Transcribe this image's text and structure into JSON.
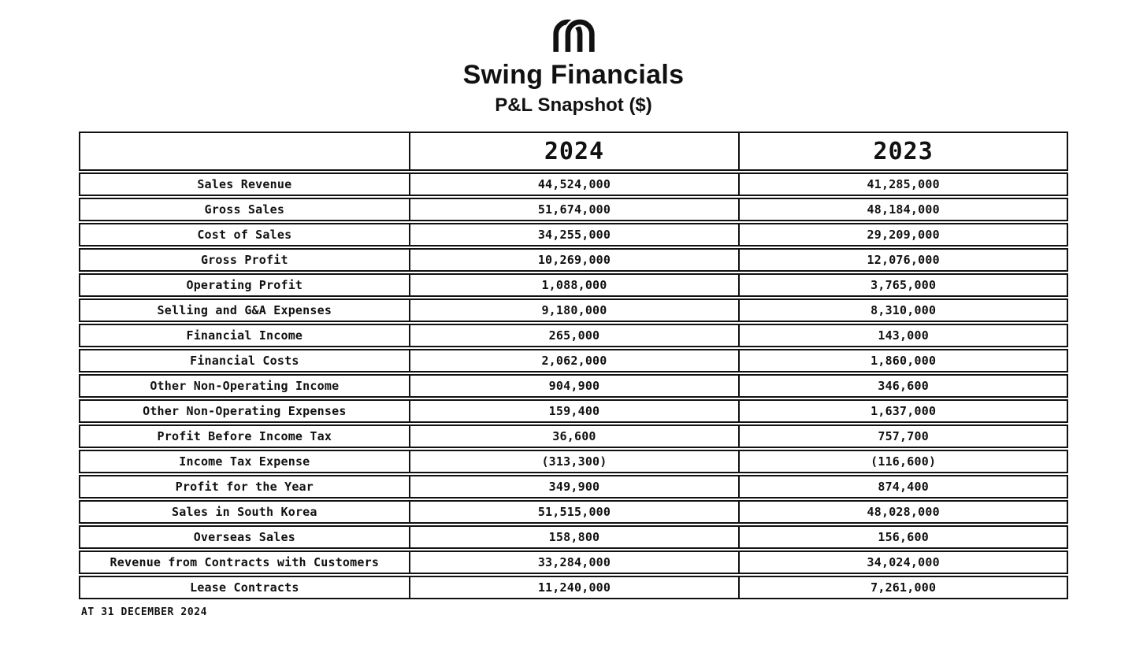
{
  "header": {
    "logo_icon": "interlocked-arches-monogram",
    "title": "Swing Financials",
    "subtitle": "P&L Snapshot ($)"
  },
  "table": {
    "columns": [
      "",
      "2024",
      "2023"
    ],
    "rows": [
      {
        "label": "Sales Revenue",
        "y2024": "44,524,000",
        "y2023": "41,285,000"
      },
      {
        "label": "Gross Sales",
        "y2024": "51,674,000",
        "y2023": "48,184,000"
      },
      {
        "label": "Cost of Sales",
        "y2024": "34,255,000",
        "y2023": "29,209,000"
      },
      {
        "label": "Gross Profit",
        "y2024": "10,269,000",
        "y2023": "12,076,000"
      },
      {
        "label": "Operating Profit",
        "y2024": "1,088,000",
        "y2023": "3,765,000"
      },
      {
        "label": "Selling and G&A Expenses",
        "y2024": "9,180,000",
        "y2023": "8,310,000"
      },
      {
        "label": "Financial Income",
        "y2024": "265,000",
        "y2023": "143,000"
      },
      {
        "label": "Financial Costs",
        "y2024": "2,062,000",
        "y2023": "1,860,000"
      },
      {
        "label": "Other Non-Operating Income",
        "y2024": "904,900",
        "y2023": "346,600"
      },
      {
        "label": "Other Non-Operating Expenses",
        "y2024": "159,400",
        "y2023": "1,637,000"
      },
      {
        "label": "Profit Before Income Tax",
        "y2024": "36,600",
        "y2023": "757,700"
      },
      {
        "label": "Income Tax Expense",
        "y2024": "(313,300)",
        "y2023": "(116,600)"
      },
      {
        "label": "Profit for the Year",
        "y2024": "349,900",
        "y2023": "874,400"
      },
      {
        "label": "Sales in South Korea",
        "y2024": "51,515,000",
        "y2023": "48,028,000"
      },
      {
        "label": "Overseas Sales",
        "y2024": "158,800",
        "y2023": "156,600"
      },
      {
        "label": "Revenue from Contracts with Customers",
        "y2024": "33,284,000",
        "y2023": "34,024,000"
      },
      {
        "label": "Lease Contracts",
        "y2024": "11,240,000",
        "y2023": "7,261,000"
      }
    ]
  },
  "footer": {
    "note": "AT 31 DECEMBER 2024"
  },
  "colors": {
    "text": "#111111",
    "border": "#111111",
    "background": "#ffffff"
  }
}
